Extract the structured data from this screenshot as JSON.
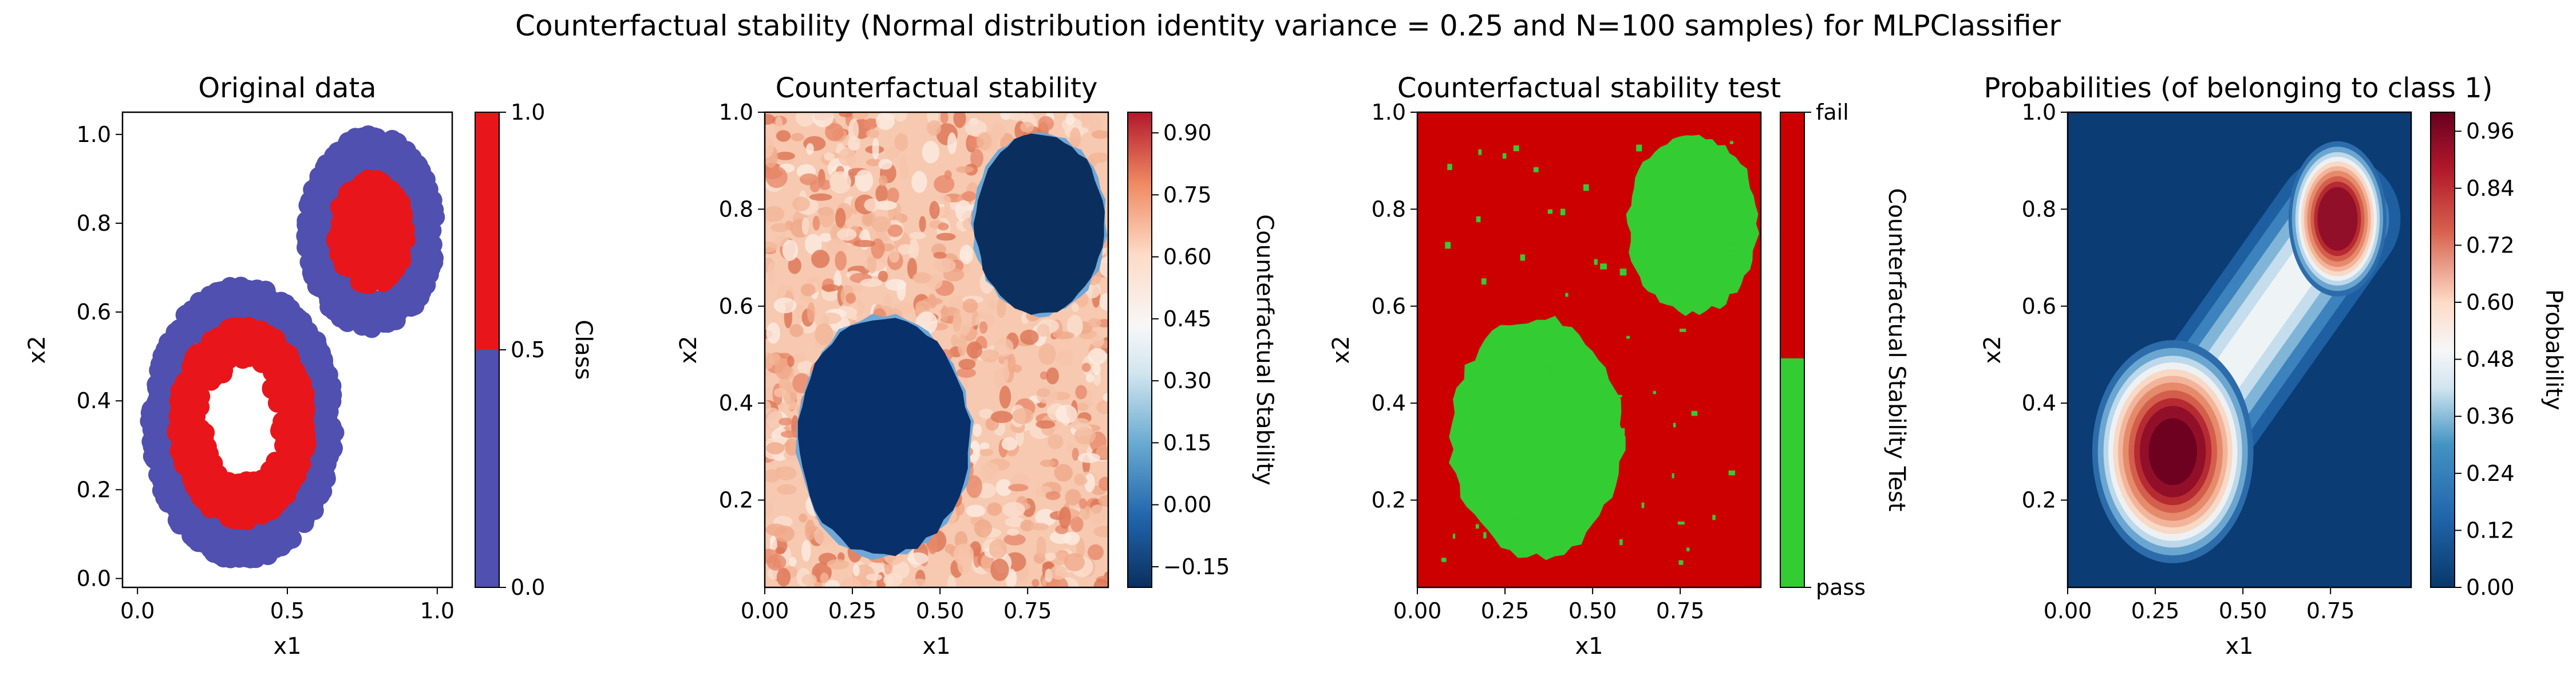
{
  "figure": {
    "suptitle": "Counterfactual stability (Normal distribution identity variance = 0.25 and N=100 samples) for MLPClassifier"
  },
  "chart_data": [
    {
      "type": "scatter",
      "title": "Original data",
      "xlabel": "x1",
      "ylabel": "x2",
      "xlim": [
        -0.05,
        1.05
      ],
      "ylim": [
        -0.02,
        1.05
      ],
      "xticks": [
        "0.0",
        "0.5",
        "1.0"
      ],
      "yticks": [
        "0.0",
        "0.2",
        "0.4",
        "0.6",
        "0.8",
        "1.0"
      ],
      "series": [
        {
          "class": 0,
          "color": "#5050b0",
          "shape": "ring",
          "center": [
            0.35,
            0.35
          ],
          "r_inner": 0.21,
          "r_outer": 0.31,
          "n": 700
        },
        {
          "class": 1,
          "color": "#e8161a",
          "shape": "ring",
          "center": [
            0.35,
            0.35
          ],
          "r_inner": 0.12,
          "r_outer": 0.22,
          "n": 500
        },
        {
          "class": 0,
          "color": "#5050b0",
          "shape": "ring",
          "center": [
            0.78,
            0.78
          ],
          "r_inner": 0.12,
          "r_outer": 0.22,
          "n": 500
        },
        {
          "class": 1,
          "color": "#e8161a",
          "shape": "ring",
          "center": [
            0.78,
            0.78
          ],
          "r_inner": 0.02,
          "r_outer": 0.12,
          "n": 250
        }
      ],
      "colorbar": {
        "label": "Class",
        "ticks": [
          "0.0",
          "0.5",
          "1.0"
        ],
        "colors": [
          "#5050b0",
          "#e8161a"
        ]
      }
    },
    {
      "type": "heatmap",
      "title": "Counterfactual stability",
      "xlabel": "x1",
      "ylabel": "x2",
      "xlim": [
        0.0,
        0.98
      ],
      "ylim": [
        0.02,
        1.0
      ],
      "xticks": [
        "0.00",
        "0.25",
        "0.50",
        "0.75"
      ],
      "yticks": [
        "0.2",
        "0.4",
        "0.6",
        "0.8",
        "1.0"
      ],
      "regions": [
        {
          "level": -0.2,
          "center": [
            0.34,
            0.33
          ],
          "radius": 0.245
        },
        {
          "level": -0.2,
          "center": [
            0.785,
            0.77
          ],
          "radius": 0.185
        }
      ],
      "background_level_range": [
        0.55,
        0.9
      ],
      "colorbar": {
        "label": "Counterfactual Stability",
        "ticks": [
          "−0.15",
          "0.00",
          "0.15",
          "0.30",
          "0.45",
          "0.60",
          "0.75",
          "0.90"
        ],
        "range": [
          -0.2,
          0.95
        ]
      }
    },
    {
      "type": "heatmap",
      "title": "Counterfactual stability test",
      "xlabel": "x1",
      "ylabel": "x2",
      "xlim": [
        0.0,
        0.98
      ],
      "ylim": [
        0.02,
        1.0
      ],
      "xticks": [
        "0.00",
        "0.25",
        "0.50",
        "0.75"
      ],
      "yticks": [
        "0.2",
        "0.4",
        "0.6",
        "0.8",
        "1.0"
      ],
      "regions": [
        {
          "value": "pass",
          "center": [
            0.34,
            0.33
          ],
          "radius": 0.245
        },
        {
          "value": "pass",
          "center": [
            0.785,
            0.77
          ],
          "radius": 0.185
        }
      ],
      "colors": {
        "fail": "#cc0000",
        "pass": "#33cc33"
      },
      "colorbar": {
        "label": "Counterfactual Stability Test",
        "ticks": [
          "pass",
          "fail"
        ]
      }
    },
    {
      "type": "heatmap",
      "title": "Probabilities (of belonging to class 1)",
      "xlabel": "x1",
      "ylabel": "x2",
      "xlim": [
        0.0,
        0.98
      ],
      "ylim": [
        0.02,
        1.0
      ],
      "xticks": [
        "0.00",
        "0.25",
        "0.50",
        "0.75"
      ],
      "yticks": [
        "0.2",
        "0.4",
        "0.6",
        "0.8",
        "1.0"
      ],
      "peaks": [
        {
          "center": [
            0.3,
            0.3
          ],
          "value": 0.99
        },
        {
          "center": [
            0.77,
            0.78
          ],
          "value": 0.92
        }
      ],
      "colorbar": {
        "label": "Probability",
        "ticks": [
          "0.00",
          "0.12",
          "0.24",
          "0.36",
          "0.48",
          "0.60",
          "0.72",
          "0.84",
          "0.96"
        ],
        "range": [
          0.0,
          1.0
        ]
      }
    }
  ]
}
